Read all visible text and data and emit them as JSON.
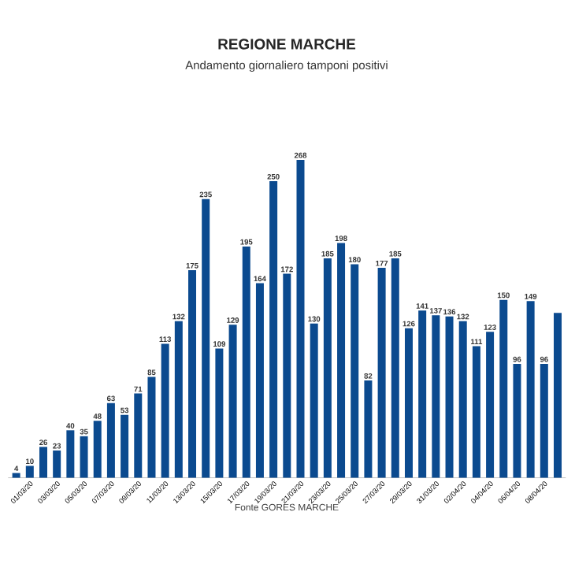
{
  "chart_data": {
    "type": "bar",
    "title": "REGIONE MARCHE",
    "subtitle": "Andamento giornaliero tamponi positivi",
    "categories": [
      null,
      "01/03/20",
      null,
      "03/03/20",
      null,
      "05/03/20",
      null,
      "07/03/20",
      null,
      "09/03/20",
      null,
      "11/03/20",
      null,
      "13/03/20",
      null,
      "15/03/20",
      null,
      "17/03/20",
      null,
      "19/03/20",
      null,
      "21/03/20",
      null,
      "23/03/20",
      null,
      "25/03/20",
      null,
      "27/03/20",
      null,
      "29/03/20",
      null,
      "31/03/20",
      null,
      "02/04/20",
      null,
      "04/04/20",
      null,
      "06/04/20",
      null,
      "08/04/20",
      null
    ],
    "values": [
      4,
      10,
      26,
      23,
      40,
      35,
      48,
      63,
      53,
      71,
      85,
      113,
      132,
      175,
      235,
      109,
      129,
      195,
      164,
      250,
      172,
      268,
      130,
      185,
      198,
      180,
      82,
      177,
      185,
      126,
      141,
      137,
      136,
      132,
      111,
      123,
      150,
      96,
      149,
      96,
      139
    ],
    "value_labels": [
      "4",
      "10",
      "26",
      "23",
      "40",
      "35",
      "48",
      "63",
      "53",
      "71",
      "85",
      "113",
      "132",
      "175",
      "235",
      "109",
      "129",
      "195",
      "164",
      "250",
      "172",
      "268",
      "130",
      "185",
      "198",
      "180",
      "82",
      "177",
      "185",
      "126",
      "141",
      "137",
      "136",
      "132",
      "111",
      "123",
      "150",
      "96",
      "149",
      "96",
      null
    ],
    "color": "#0b4a8f",
    "annotations": [
      "Fonte GORES MARCHE"
    ]
  }
}
